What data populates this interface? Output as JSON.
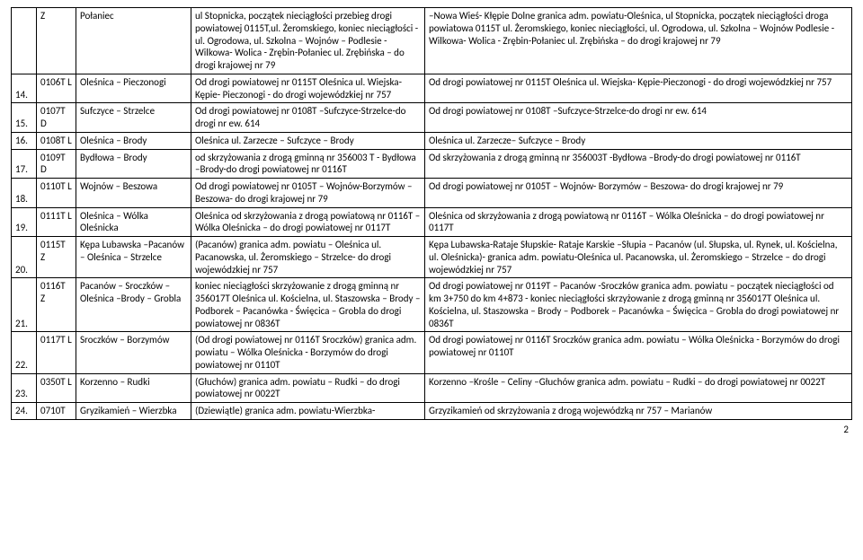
{
  "page_number": "2",
  "rows": [
    {
      "num": "",
      "code": "Z",
      "name": "Połaniec",
      "desc1": "ul Stopnicka, początek nieciągłości  przebieg drogi powiatowej 0115T,ul. Żeromskiego, koniec nieciągłości  -ul. Ogrodowa, ul. Szkolna – Wojnów – Podlesie - Wilkowa- Wolica - Zrębin-Połaniec ul. Zrębińska – do drogi krajowej nr 79",
      "desc2": "–Nowa Wieś- Kłępie Dolne granica adm. powiatu-Oleśnica, ul Stopnicka, początek nieciągłości  droga powiatowa 0115T ul. Żeromskiego, koniec nieciągłości, ul. Ogrodowa, ul. Szkolna – Wojnów Podlesie - Wilkowa- Wolica - Zrębin-Połaniec ul. Zrębińska – do drogi krajowej nr 79"
    },
    {
      "num": "14.",
      "code": "0106T L",
      "name": "Oleśnica – Pieczonogi",
      "desc1": "Od drogi powiatowej nr 0115T Oleśnica ul. Wiejska- Kępie- Pieczonogi - do drogi wojewódzkiej nr 757",
      "desc2": "Od drogi powiatowej nr 0115T Oleśnica ul. Wiejska- Kępie-Pieczonogi - do drogi wojewódzkiej nr 757"
    },
    {
      "num": "15.",
      "code": "0107T D",
      "name": "Sufczyce – Strzelce",
      "desc1": "Od drogi powiatowej nr 0108T –Sufczyce-Strzelce-do drogi  nr ew. 614",
      "desc2": "Od drogi powiatowej nr 0108T –Sufczyce-Strzelce-do drogi   nr ew. 614"
    },
    {
      "num": "16.",
      "code": "0108T L",
      "name": "Oleśnica – Brody",
      "desc1": "Oleśnica ul. Zarzecze – Sufczyce – Brody",
      "desc2": "Oleśnica ul. Zarzecze– Sufczyce – Brody"
    },
    {
      "num": "17.",
      "code": "0109T D",
      "name": "Bydłowa – Brody",
      "desc1": "od skrzyżowania z drogą gminną nr 356003 T - Bydłowa –Brody-do drogi powiatowej nr 0116T",
      "desc2": "Od skrzyżowania z drogą gminną nr 356003T -Bydłowa –Brody-do drogi powiatowej nr 0116T"
    },
    {
      "num": "18.",
      "code": "0110T L",
      "name": "Wojnów – Beszowa",
      "desc1": "Od drogi powiatowej nr 0105T – Wojnów-Borzymów – Beszowa- do drogi krajowej nr 79",
      "desc2": "Od drogi powiatowej nr 0105T – Wojnów- Borzymów – Beszowa- do drogi krajowej nr 79"
    },
    {
      "num": "19.",
      "code": "0111T L",
      "name": "Oleśnica – Wólka Oleśnicka",
      "desc1": "Oleśnica od skrzyżowania z drogą powiatową nr 0116T – Wólka Oleśnicka – do drogi powiatowej nr 0117T",
      "desc2": "Oleśnica od skrzyżowania z drogą powiatową nr 0116T – Wólka Oleśnicka – do drogi powiatowej nr 0117T"
    },
    {
      "num": "20.",
      "code": "0115T Z",
      "name": "Kępa Lubawska –Pacanów – Oleśnica – Strzelce",
      "desc1": "(Pacanów) granica adm. powiatu – Oleśnica ul. Pacanowska, ul. Żeromskiego – Strzelce- do drogi wojewódzkiej nr 757",
      "desc2": "Kępa Lubawska-Rataje Słupskie- Rataje Karskie –Słupia – Pacanów (ul. Słupska, ul. Rynek, ul. Kościelna, ul. Oleśnicka)- granica adm. powiatu-Oleśnica ul. Pacanowska, ul. Żeromskiego – Strzelce – do drogi wojewódzkiej nr 757"
    },
    {
      "num": "21.",
      "code": "0116T Z",
      "name": "Pacanów – Sroczków – Oleśnica –Brody – Grobla",
      "desc1": "koniec nieciągłości  skrzyżowanie z drogą gminną nr 356017T Oleśnica ul. Kościelna, ul. Staszowska – Brody – Podborek – Pacanówka - Święcica – Grobla do drogi powiatowej nr 0836T",
      "desc2": "Od drogi powiatowej nr 0119T – Pacanów -Sroczków granica adm. powiatu – początek nieciągłości od km 3+750 do km 4+873 - koniec nieciągłości skrzyżowanie z drogą gminną nr 356017T Oleśnica ul. Kościelna, ul. Staszowska – Brody – Podborek – Pacanówka – Święcica – Grobla do drogi powiatowej nr 0836T"
    },
    {
      "num": "22.",
      "code": "0117T L",
      "name": "Sroczków – Borzymów",
      "desc1": "(Od drogi powiatowej nr 0116T Sroczków) granica adm. powiatu – Wólka Oleśnicka - Borzymów  do drogi powiatowej nr 0110T",
      "desc2": "Od drogi powiatowej nr 0116T Sroczków  granica adm. powiatu – Wólka Oleśnicka - Borzymów do drogi powiatowej nr 0110T"
    },
    {
      "num": "23.",
      "code": "0350T L",
      "name": "Korzenno – Rudki",
      "desc1": "(Głuchów) granica adm. powiatu – Rudki – do drogi powiatowej nr 0022T",
      "desc2": "Korzenno –Krośle – Celiny –Głuchów granica adm. powiatu – Rudki – do drogi powiatowej nr 0022T"
    },
    {
      "num": "24.",
      "code": "0710T",
      "name": "Gryzikamień – Wierzbka",
      "desc1": "(Dziewiątle) granica adm. powiatu-Wierzbka-",
      "desc2": "Grzyzikamień od skrzyżowania z drogą wojewódzką nr 757 – Marianów"
    }
  ]
}
